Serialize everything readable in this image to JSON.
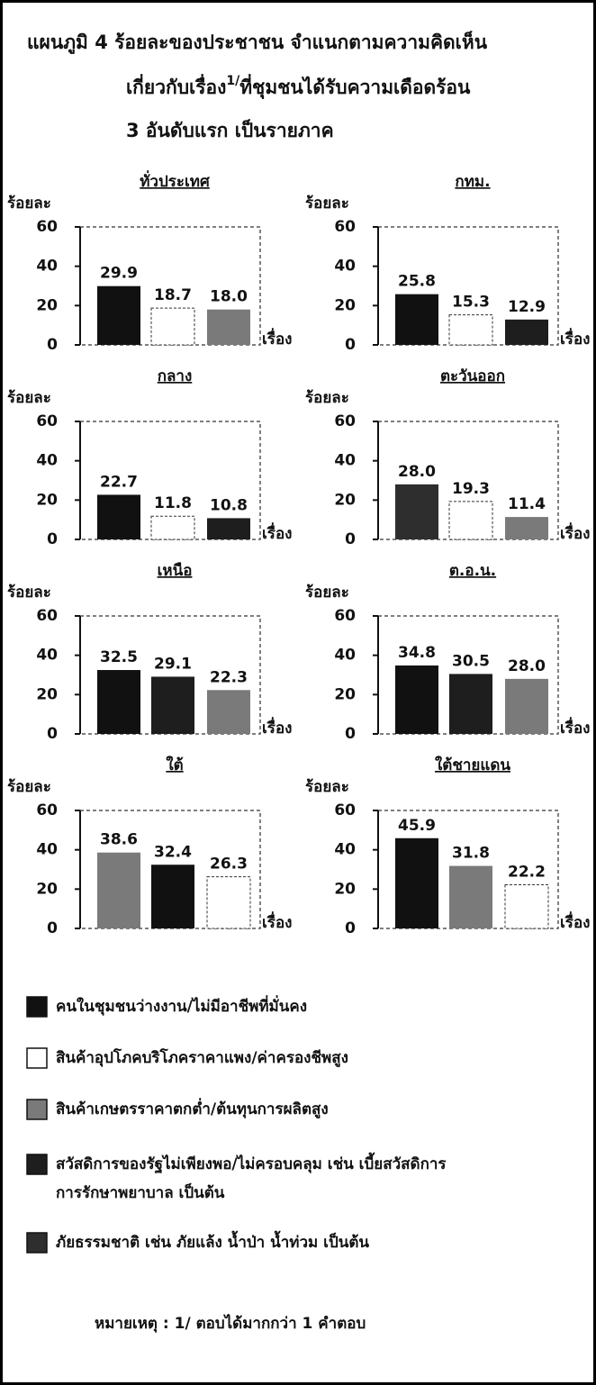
{
  "title": {
    "line1": "แผนภูมิ 4 ร้อยละของประชาชน จำแนกตามความคิดเห็น",
    "line2": "เกี่ยวกับเรื่อง",
    "line2_sup": "1/",
    "line2_end": "ที่ชุมชนได้รับความเดือดร้อน",
    "line3": "3 อันดับแรก เป็นรายภาค"
  },
  "legend": [
    {
      "color": "#111111",
      "lines": [
        "คนในชุมชนว่างงาน/ไม่มีอาชีพที่มั่นคง"
      ]
    },
    {
      "color": "#ffffff",
      "lines": [
        "สินค้าอุปโภคบริโภคราคาแพง/ค่าครองชีพสูง"
      ]
    },
    {
      "color": "#7a7a7a",
      "lines": [
        "สินค้าเกษตรราคาตกต่ำ/ต้นทุนการผลิตสูง"
      ]
    },
    {
      "color": "#1e1e1e",
      "lines": [
        "สวัสดิการของรัฐไม่เพียงพอ/ไม่ครอบคลุม เช่น เบี้ยสวัสดิการ",
        "การรักษาพยาบาล เป็นต้น"
      ]
    },
    {
      "color": "#2e2e2e",
      "lines": [
        "ภัยธรรมชาติ เช่น ภัยแล้ง น้ำป่า น้ำท่วม เป็นต้น"
      ]
    }
  ],
  "note": "หมายเหตุ : 1/ ตอบได้มากกว่า 1 คำตอบ",
  "chart_data": [
    {
      "type": "bar",
      "title": "ทั่วประเทศ",
      "y_label": "ร้อยละ",
      "x_label": "เรื่อง",
      "values": [
        29.9,
        18.7,
        18.0
      ],
      "value_labels": [
        "29.9",
        "18.7",
        "18.0"
      ],
      "colors": [
        "#111111",
        "#ffffff",
        "#7a7a7a"
      ],
      "ylim": [
        0,
        60
      ],
      "yticks": [
        0,
        20,
        40,
        60
      ]
    },
    {
      "type": "bar",
      "title": "กทม.",
      "y_label": "ร้อยละ",
      "x_label": "เรื่อง",
      "values": [
        25.8,
        15.3,
        12.9
      ],
      "value_labels": [
        "25.8",
        "15.3",
        "12.9"
      ],
      "colors": [
        "#111111",
        "#ffffff",
        "#1e1e1e"
      ],
      "ylim": [
        0,
        60
      ],
      "yticks": [
        0,
        20,
        40,
        60
      ]
    },
    {
      "type": "bar",
      "title": "กลาง",
      "y_label": "ร้อยละ",
      "x_label": "เรื่อง",
      "values": [
        22.7,
        11.8,
        10.8
      ],
      "value_labels": [
        "22.7",
        "11.8",
        "10.8"
      ],
      "colors": [
        "#111111",
        "#ffffff",
        "#1e1e1e"
      ],
      "ylim": [
        0,
        60
      ],
      "yticks": [
        0,
        20,
        40,
        60
      ]
    },
    {
      "type": "bar",
      "title": "ตะวันออก",
      "y_label": "ร้อยละ",
      "x_label": "เรื่อง",
      "values": [
        28.0,
        19.3,
        11.4
      ],
      "value_labels": [
        "28.0",
        "19.3",
        "11.4"
      ],
      "colors": [
        "#2e2e2e",
        "#ffffff",
        "#7a7a7a"
      ],
      "ylim": [
        0,
        60
      ],
      "yticks": [
        0,
        20,
        40,
        60
      ]
    },
    {
      "type": "bar",
      "title": "เหนือ",
      "y_label": "ร้อยละ",
      "x_label": "เรื่อง",
      "values": [
        32.5,
        29.1,
        22.3
      ],
      "value_labels": [
        "32.5",
        "29.1",
        "22.3"
      ],
      "colors": [
        "#111111",
        "#1e1e1e",
        "#7a7a7a"
      ],
      "ylim": [
        0,
        60
      ],
      "yticks": [
        0,
        20,
        40,
        60
      ]
    },
    {
      "type": "bar",
      "title": "ต.อ.น.",
      "y_label": "ร้อยละ",
      "x_label": "เรื่อง",
      "values": [
        34.8,
        30.5,
        28.0
      ],
      "value_labels": [
        "34.8",
        "30.5",
        "28.0"
      ],
      "colors": [
        "#111111",
        "#1e1e1e",
        "#7a7a7a"
      ],
      "ylim": [
        0,
        60
      ],
      "yticks": [
        0,
        20,
        40,
        60
      ]
    },
    {
      "type": "bar",
      "title": "ใต้",
      "y_label": "ร้อยละ",
      "x_label": "เรื่อง",
      "values": [
        38.6,
        32.4,
        26.3
      ],
      "value_labels": [
        "38.6",
        "32.4",
        "26.3"
      ],
      "colors": [
        "#7a7a7a",
        "#111111",
        "#ffffff"
      ],
      "ylim": [
        0,
        60
      ],
      "yticks": [
        0,
        20,
        40,
        60
      ]
    },
    {
      "type": "bar",
      "title": "ใต้ชายแดน",
      "y_label": "ร้อยละ",
      "x_label": "เรื่อง",
      "values": [
        45.9,
        31.8,
        22.2
      ],
      "value_labels": [
        "45.9",
        "31.8",
        "22.2"
      ],
      "colors": [
        "#111111",
        "#7a7a7a",
        "#ffffff"
      ],
      "ylim": [
        0,
        60
      ],
      "yticks": [
        0,
        20,
        40,
        60
      ]
    }
  ]
}
